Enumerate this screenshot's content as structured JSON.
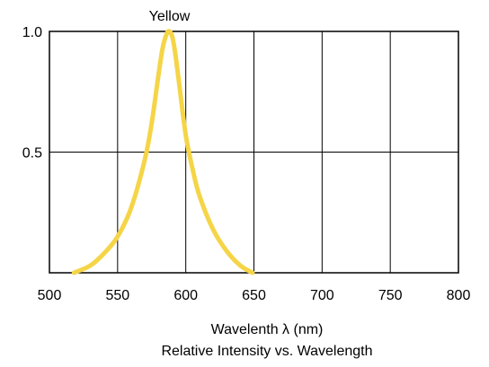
{
  "chart_data": {
    "type": "line",
    "xlabel": "Wavelenth λ (nm)",
    "title": "Relative Intensity vs. Wavelength",
    "xlim": [
      500,
      800
    ],
    "ylim": [
      0,
      1
    ],
    "x_ticks": [
      {
        "value": 500,
        "label": "500"
      },
      {
        "value": 550,
        "label": "550"
      },
      {
        "value": 600,
        "label": "600"
      },
      {
        "value": 650,
        "label": "650"
      },
      {
        "value": 700,
        "label": "700"
      },
      {
        "value": 750,
        "label": "750"
      },
      {
        "value": 800,
        "label": "800"
      }
    ],
    "y_ticks": [
      {
        "value": 1.0,
        "label": "1.0"
      },
      {
        "value": 0.5,
        "label": "0.5"
      }
    ],
    "grid": true,
    "series": [
      {
        "name": "Yellow",
        "color": "#f5d547",
        "x": [
          518,
          530,
          540,
          550,
          560,
          570,
          575,
          580,
          583,
          586,
          588,
          590,
          592,
          595,
          600,
          605,
          610,
          620,
          630,
          640,
          649
        ],
        "y": [
          0.0,
          0.03,
          0.08,
          0.15,
          0.27,
          0.47,
          0.62,
          0.82,
          0.93,
          0.99,
          1.0,
          0.98,
          0.92,
          0.79,
          0.57,
          0.43,
          0.32,
          0.18,
          0.09,
          0.03,
          0.0
        ]
      }
    ]
  }
}
